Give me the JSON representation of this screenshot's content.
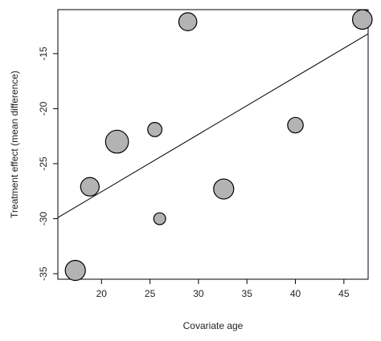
{
  "chart_data": {
    "type": "scatter",
    "title": "",
    "xlabel": "Covariate age",
    "ylabel": "Treatment effect (mean difference)",
    "xlim": [
      15.5,
      47.5
    ],
    "ylim": [
      -35.5,
      -11
    ],
    "xticks": [
      20,
      25,
      30,
      35,
      40,
      45
    ],
    "yticks": [
      -35,
      -30,
      -25,
      -20,
      -15
    ],
    "grid": false,
    "legend": "none",
    "points": [
      {
        "x": 17.3,
        "y": -34.7,
        "weight": 1.0
      },
      {
        "x": 18.8,
        "y": -27.1,
        "weight": 0.85
      },
      {
        "x": 21.6,
        "y": -23.0,
        "weight": 1.3
      },
      {
        "x": 25.5,
        "y": -21.9,
        "weight": 0.5
      },
      {
        "x": 26.0,
        "y": -30.0,
        "weight": 0.35
      },
      {
        "x": 28.9,
        "y": -12.1,
        "weight": 0.8
      },
      {
        "x": 32.6,
        "y": -27.3,
        "weight": 1.0
      },
      {
        "x": 40.0,
        "y": -21.5,
        "weight": 0.6
      },
      {
        "x": 46.9,
        "y": -11.9,
        "weight": 0.95
      }
    ],
    "fit_line": {
      "x": [
        15.5,
        47.5
      ],
      "y": [
        -29.9,
        -13.2
      ]
    },
    "colors": {
      "point_fill": "#b3b3b3",
      "point_stroke": "#000000",
      "line": "#000000"
    }
  }
}
